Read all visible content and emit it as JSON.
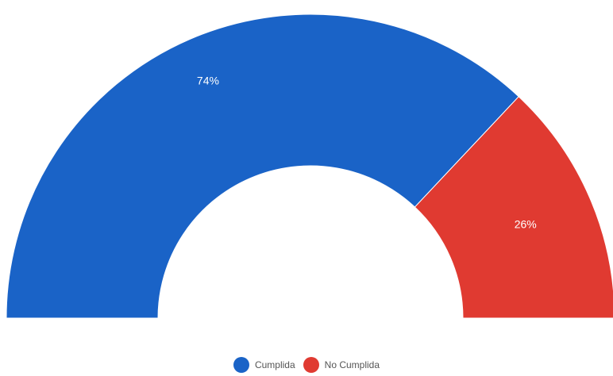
{
  "chart_data": {
    "type": "pie",
    "variant": "half-donut",
    "categories": [
      "Cumplida",
      "No Cumplida"
    ],
    "values": [
      74,
      26
    ],
    "labels": [
      "74%",
      "26%"
    ],
    "colors": [
      "#1a63c7",
      "#e03a31"
    ],
    "legend_position": "bottom"
  },
  "legend": {
    "items": [
      {
        "label": "Cumplida",
        "color": "#1a63c7"
      },
      {
        "label": "No Cumplida",
        "color": "#e03a31"
      }
    ]
  }
}
